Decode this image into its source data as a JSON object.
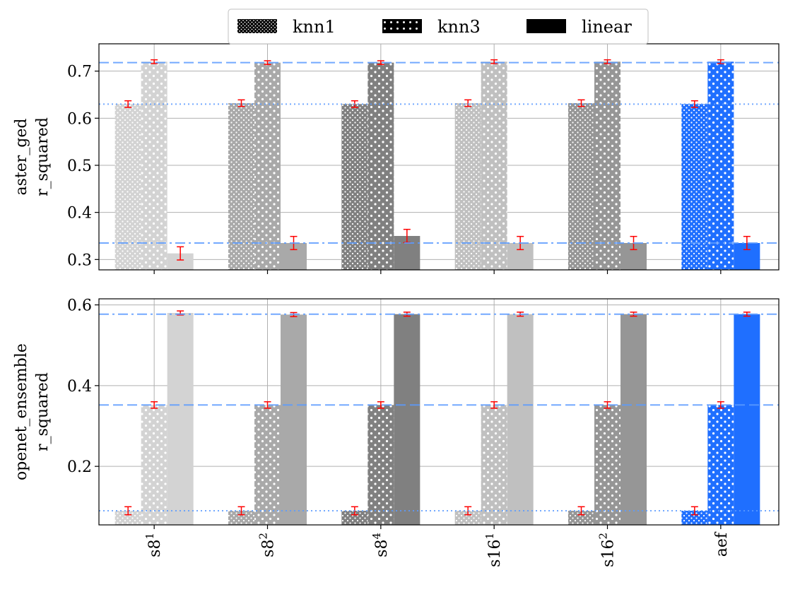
{
  "chart_data": {
    "type": "bar",
    "legend": {
      "placement": "top-center",
      "entries": [
        {
          "name": "knn1",
          "pattern": "dots-dense"
        },
        {
          "name": "knn3",
          "pattern": "dots-sparse"
        },
        {
          "name": "linear",
          "pattern": "solid"
        }
      ]
    },
    "categories": [
      "s8",
      "s8",
      "s8",
      "s16",
      "s16",
      "aef"
    ],
    "category_superscripts": [
      "1",
      "2",
      "4",
      "1",
      "2",
      ""
    ],
    "category_colors": [
      "#d3d3d3",
      "#a9a9a9",
      "#808080",
      "#c0c0c0",
      "#969696",
      "#1f6fff"
    ],
    "reference_line_color": "#5b9bff",
    "error_bar_color": "#ff0000",
    "panels": [
      {
        "ylabel_line1": "aster_ged",
        "ylabel_line2": "r_squared",
        "ylim": [
          0.278,
          0.758
        ],
        "yticks": [
          0.3,
          0.4,
          0.5,
          0.6,
          0.7
        ],
        "ytick_labels": [
          "0.3",
          "0.4",
          "0.5",
          "0.6",
          "0.7"
        ],
        "grid": true,
        "series": [
          {
            "name": "knn1",
            "values": [
              0.63,
              0.632,
              0.63,
              0.632,
              0.632,
              0.63
            ],
            "errors": [
              0.007,
              0.007,
              0.007,
              0.007,
              0.007,
              0.007
            ]
          },
          {
            "name": "knn3",
            "values": [
              0.72,
              0.718,
              0.718,
              0.72,
              0.72,
              0.72
            ],
            "errors": [
              0.004,
              0.004,
              0.004,
              0.004,
              0.004,
              0.004
            ]
          },
          {
            "name": "linear",
            "values": [
              0.313,
              0.335,
              0.35,
              0.335,
              0.335,
              0.335
            ],
            "errors": [
              0.014,
              0.014,
              0.014,
              0.014,
              0.014,
              0.014
            ]
          }
        ],
        "reference_lines": [
          {
            "value": 0.718,
            "style": "dashed"
          },
          {
            "value": 0.63,
            "style": "dotted"
          },
          {
            "value": 0.335,
            "style": "dashdot"
          }
        ]
      },
      {
        "ylabel_line1": "openet_ensemble",
        "ylabel_line2": "r_squared",
        "ylim": [
          0.055,
          0.615
        ],
        "yticks": [
          0.2,
          0.4,
          0.6
        ],
        "ytick_labels": [
          "0.2",
          "0.4",
          "0.6"
        ],
        "grid": true,
        "series": [
          {
            "name": "knn1",
            "values": [
              0.09,
              0.09,
              0.09,
              0.09,
              0.09,
              0.09
            ],
            "errors": [
              0.01,
              0.01,
              0.01,
              0.01,
              0.01,
              0.01
            ]
          },
          {
            "name": "knn3",
            "values": [
              0.352,
              0.352,
              0.352,
              0.352,
              0.352,
              0.352
            ],
            "errors": [
              0.008,
              0.008,
              0.008,
              0.008,
              0.008,
              0.008
            ]
          },
          {
            "name": "linear",
            "values": [
              0.58,
              0.576,
              0.577,
              0.577,
              0.577,
              0.577
            ],
            "errors": [
              0.005,
              0.005,
              0.005,
              0.005,
              0.005,
              0.005
            ]
          }
        ],
        "reference_lines": [
          {
            "value": 0.577,
            "style": "dashdot"
          },
          {
            "value": 0.352,
            "style": "dashed"
          },
          {
            "value": 0.09,
            "style": "dotted"
          }
        ]
      }
    ]
  }
}
